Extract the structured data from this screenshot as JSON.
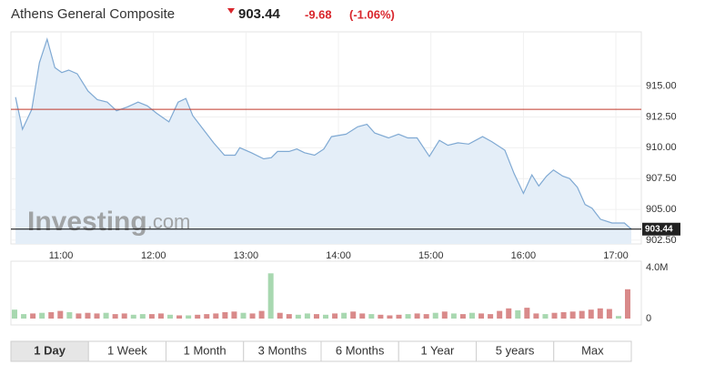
{
  "header": {
    "name": "Athens General Composite",
    "price": "903.44",
    "change": "-9.68",
    "change_pct": "(-1.06%)"
  },
  "watermark": [
    "Investing",
    ".com"
  ],
  "chart_data": [
    {
      "type": "area",
      "color": "#7fa9d3",
      "fill": "#e4eef8",
      "reference_line": 913.12,
      "reference_color": "#c0392b",
      "last_line_color": "#000000",
      "x": [
        630.5,
        635,
        641,
        646,
        651,
        656,
        660.5,
        665,
        670.5,
        677.5,
        683.5,
        690,
        696,
        703,
        710,
        716,
        722,
        730,
        736,
        741,
        745.5,
        753.5,
        759,
        766,
        773,
        776,
        783.5,
        791.5,
        796.5,
        800.5,
        808,
        813,
        818,
        824.5,
        830.5,
        835.5,
        845,
        852.5,
        858.5,
        863.5,
        872.5,
        879,
        885,
        891,
        899,
        905.5,
        911,
        917.5,
        924.5,
        933.5,
        939.5,
        948,
        954,
        960,
        965.5,
        970,
        975,
        979.5,
        985.5,
        990,
        995,
        1000,
        1004.5,
        1010,
        1017.5,
        1025.5,
        1030
      ],
      "values": [
        914.1,
        911.5,
        913.1,
        916.9,
        918.8,
        916.5,
        916.1,
        916.3,
        916.0,
        914.6,
        913.9,
        913.7,
        913.0,
        913.3,
        913.7,
        913.4,
        912.8,
        912.1,
        913.7,
        914.0,
        912.6,
        911.3,
        910.4,
        909.4,
        909.4,
        910.0,
        909.6,
        909.1,
        909.2,
        909.7,
        909.7,
        909.9,
        909.6,
        909.4,
        909.9,
        910.9,
        911.1,
        911.7,
        911.9,
        911.2,
        910.8,
        911.1,
        910.8,
        910.8,
        909.3,
        910.6,
        910.2,
        910.4,
        910.3,
        910.9,
        910.5,
        909.8,
        907.9,
        906.3,
        907.8,
        906.9,
        907.7,
        908.2,
        907.7,
        907.5,
        906.8,
        905.4,
        905.1,
        904.2,
        903.9,
        903.9,
        903.4
      ],
      "xlim": [
        627.5,
        1036.5
      ],
      "xticks": [
        {
          "value": 660,
          "label": "11:00"
        },
        {
          "value": 720,
          "label": "12:00"
        },
        {
          "value": 780,
          "label": "13:00"
        },
        {
          "value": 840,
          "label": "14:00"
        },
        {
          "value": 900,
          "label": "15:00"
        },
        {
          "value": 960,
          "label": "16:00"
        },
        {
          "value": 1020,
          "label": "17:00"
        }
      ],
      "ylim": [
        902.2,
        919.4
      ],
      "yticks": [
        {
          "value": 902.5,
          "label": "902.50"
        },
        {
          "value": 905,
          "label": "905.00"
        },
        {
          "value": 907.5,
          "label": "907.50"
        },
        {
          "value": 910,
          "label": "910.00"
        },
        {
          "value": 912.5,
          "label": "912.50"
        },
        {
          "value": 915,
          "label": "915.00"
        }
      ]
    },
    {
      "type": "bar",
      "up_color": "#a8d8b0",
      "down_color": "#d98a8a",
      "values": [
        700000,
        350000,
        400000,
        450000,
        500000,
        600000,
        500000,
        400000,
        450000,
        400000,
        450000,
        350000,
        400000,
        300000,
        350000,
        350000,
        400000,
        300000,
        250000,
        250000,
        300000,
        350000,
        400000,
        500000,
        550000,
        450000,
        400000,
        600000,
        3550000,
        450000,
        350000,
        300000,
        400000,
        350000,
        300000,
        400000,
        450000,
        550000,
        400000,
        350000,
        300000,
        250000,
        300000,
        350000,
        400000,
        350000,
        450000,
        550000,
        400000,
        350000,
        450000,
        400000,
        350000,
        600000,
        800000,
        650000,
        850000,
        400000,
        350000,
        450000,
        500000,
        550000,
        600000,
        700000,
        800000,
        750000,
        200000,
        2300000
      ],
      "rising": [
        true,
        true,
        false,
        true,
        false,
        false,
        true,
        false,
        false,
        false,
        true,
        false,
        false,
        true,
        true,
        false,
        false,
        true,
        false,
        true,
        false,
        false,
        false,
        false,
        false,
        true,
        false,
        false,
        true,
        false,
        false,
        true,
        true,
        false,
        true,
        false,
        true,
        false,
        false,
        true,
        false,
        false,
        false,
        true,
        false,
        false,
        true,
        false,
        true,
        false,
        true,
        false,
        false,
        false,
        false,
        true,
        false,
        false,
        true,
        false,
        false,
        false,
        false,
        false,
        false,
        false,
        true,
        false
      ],
      "ylim": [
        0,
        4500000
      ],
      "yticks": [
        0,
        {
          "value": 4000000,
          "label": "4.0M"
        }
      ]
    }
  ],
  "range_buttons": [
    "1 Day",
    "1 Week",
    "1 Month",
    "3 Months",
    "6 Months",
    "1 Year",
    "5 years",
    "Max"
  ],
  "selected_range": 0
}
